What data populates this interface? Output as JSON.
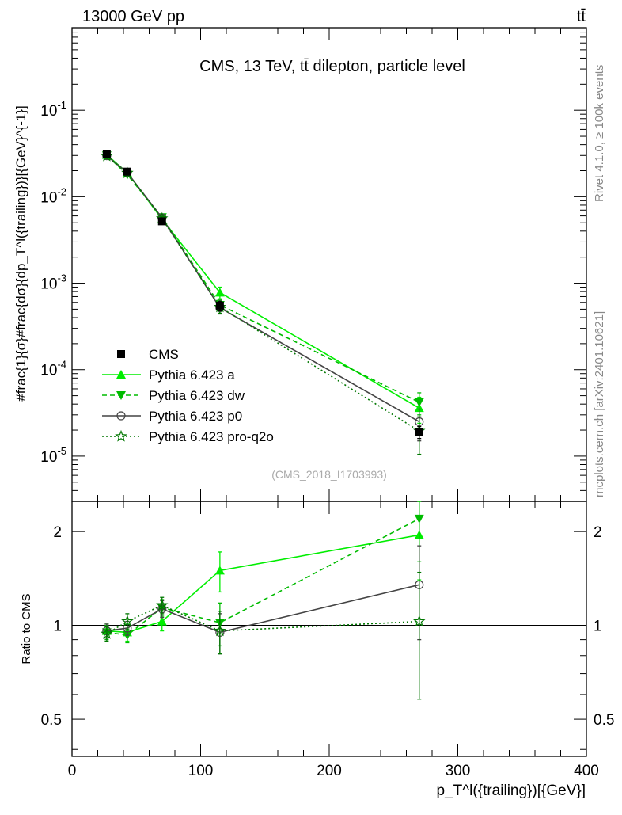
{
  "header": {
    "left": "13000 GeV pp",
    "right": "tt̄",
    "side_top": "Rivet 4.1.0, ≥ 100k events",
    "side_bottom": "mcplots.cern.ch [arXiv:2401.10621]"
  },
  "chart_data": [
    {
      "type": "line",
      "panel": "main",
      "title": "CMS, 13 TeV, tt̄ dilepton, particle level",
      "watermark": "(CMS_2018_I1703993)",
      "ylabel": "#frac{1}{σ}#frac{dσ}{dp_T^l({trailing})}[{GeV}^{-1}]",
      "yscale": "log",
      "ylim": [
        3e-06,
        0.9
      ],
      "xlim": [
        0,
        400
      ],
      "ytick_labels": [
        "10^-5",
        "10^-4",
        "10^-3",
        "10^-2",
        "10^-1"
      ],
      "ytick_values": [
        1e-05,
        0.0001,
        0.001,
        0.01,
        0.1
      ],
      "x": [
        27,
        43,
        70,
        115,
        270
      ],
      "series": [
        {
          "name": "CMS",
          "color": "#000000",
          "marker": "square",
          "values": [
            0.031,
            0.0195,
            0.0052,
            0.00055,
            1.9e-05
          ],
          "errors": [
            0.0011,
            0.0007,
            0.0003,
            7e-05,
            3e-06
          ]
        },
        {
          "name": "Pythia 6.423 a",
          "color": "#00ee00",
          "marker": "triangle-up",
          "line": "solid",
          "values": [
            0.0305,
            0.019,
            0.0055,
            0.00078,
            3.6e-05
          ],
          "errors": [
            0.0008,
            0.0006,
            0.0003,
            0.00012,
            1.2e-05
          ]
        },
        {
          "name": "Pythia 6.423 dw",
          "color": "#00bb00",
          "marker": "triangle-down",
          "line": "dashed",
          "values": [
            0.03,
            0.018,
            0.0058,
            0.00056,
            4.2e-05
          ],
          "errors": [
            0.0008,
            0.0006,
            0.0003,
            8e-05,
            1.2e-05
          ]
        },
        {
          "name": "Pythia 6.423 p0",
          "color": "#444444",
          "marker": "circle-open",
          "line": "solid",
          "values": [
            0.0298,
            0.019,
            0.0057,
            0.00052,
            2.5e-05
          ],
          "errors": [
            0.0008,
            0.0006,
            0.0003,
            8e-05,
            1e-05
          ]
        },
        {
          "name": "Pythia 6.423 pro-q2o",
          "color": "#007700",
          "marker": "star-open",
          "line": "dotted",
          "values": [
            0.0295,
            0.0188,
            0.0056,
            0.00053,
            1.95e-05
          ],
          "errors": [
            0.0008,
            0.0006,
            0.0003,
            8e-05,
            9e-06
          ]
        }
      ]
    },
    {
      "type": "line",
      "panel": "ratio",
      "ylabel": "Ratio to CMS",
      "xlabel": "p_T^l({trailing})[{GeV}]",
      "yscale": "log",
      "ylim": [
        0.38,
        2.5
      ],
      "xlim": [
        0,
        400
      ],
      "ytick_labels": [
        "0.5",
        "1",
        "2"
      ],
      "ytick_values": [
        0.5,
        1,
        2
      ],
      "xtick_labels": [
        "0",
        "100",
        "200",
        "300",
        "400"
      ],
      "xtick_values": [
        0,
        100,
        200,
        300,
        400
      ],
      "x": [
        27,
        43,
        70,
        115,
        270
      ],
      "series": [
        {
          "name": "Pythia 6.423 a",
          "color": "#00ee00",
          "marker": "triangle-up",
          "line": "solid",
          "values": [
            0.96,
            0.95,
            1.03,
            1.5,
            1.95
          ],
          "errors": [
            0.05,
            0.06,
            0.07,
            0.22,
            0.55
          ]
        },
        {
          "name": "Pythia 6.423 dw",
          "color": "#00bb00",
          "marker": "triangle-down",
          "line": "dashed",
          "values": [
            0.95,
            0.93,
            1.14,
            1.02,
            2.2
          ],
          "errors": [
            0.05,
            0.05,
            0.07,
            0.16,
            0.6
          ]
        },
        {
          "name": "Pythia 6.423 p0",
          "color": "#444444",
          "marker": "circle-open",
          "line": "solid",
          "values": [
            0.96,
            0.98,
            1.13,
            0.95,
            1.35
          ],
          "errors": [
            0.05,
            0.05,
            0.07,
            0.14,
            0.45
          ]
        },
        {
          "name": "Pythia 6.423 pro-q2o",
          "color": "#007700",
          "marker": "star-open",
          "line": "dotted",
          "values": [
            0.94,
            1.03,
            1.16,
            0.96,
            1.03
          ],
          "errors": [
            0.05,
            0.06,
            0.07,
            0.15,
            0.45
          ]
        }
      ]
    }
  ]
}
